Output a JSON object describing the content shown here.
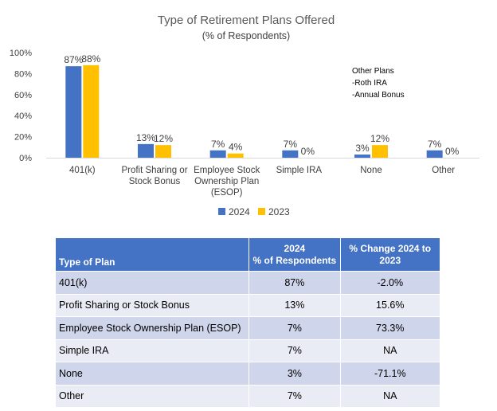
{
  "chart_data": {
    "type": "bar",
    "title": "Type of Retirement Plans Offered",
    "subtitle": "(% of Respondents)",
    "categories": [
      [
        "401(k)"
      ],
      [
        "Profit Sharing or",
        "Stock Bonus"
      ],
      [
        "Employee Stock",
        "Ownership Plan",
        "(ESOP)"
      ],
      [
        "Simple IRA"
      ],
      [
        "None"
      ],
      [
        "Other"
      ]
    ],
    "series": [
      {
        "name": "2024",
        "color": "#4472c4",
        "values": [
          87,
          13,
          7,
          7,
          3,
          7
        ],
        "labels": [
          "87%",
          "13%",
          "7%",
          "7%",
          "3%",
          "7%"
        ]
      },
      {
        "name": "2023",
        "color": "#ffc000",
        "values": [
          88,
          12,
          4,
          0,
          12,
          0
        ],
        "labels": [
          "88%",
          "12%",
          "4%",
          "0%",
          "12%",
          "0%"
        ]
      }
    ],
    "ylim": [
      0,
      100
    ],
    "yticks": [
      0,
      20,
      40,
      60,
      80,
      100
    ],
    "ytick_labels": [
      "0%",
      "20%",
      "40%",
      "60%",
      "80%",
      "100%"
    ],
    "xlabel": "",
    "ylabel": "",
    "grid": false,
    "legend_position": "bottom",
    "annotation": [
      "Other Plans",
      "-Roth IRA",
      "-Annual Bonus"
    ]
  },
  "table": {
    "header": {
      "plan": "Type of Plan",
      "col2": [
        "2024",
        "% of Respondents"
      ],
      "col3": [
        "% Change 2024 to",
        "2023"
      ]
    },
    "rows": [
      {
        "plan": "401(k)",
        "pct": "87%",
        "change": "-2.0%"
      },
      {
        "plan": "Profit Sharing or Stock Bonus",
        "pct": "13%",
        "change": "15.6%"
      },
      {
        "plan": "Employee Stock Ownership Plan (ESOP)",
        "pct": "7%",
        "change": "73.3%"
      },
      {
        "plan": "Simple IRA",
        "pct": "7%",
        "change": "NA"
      },
      {
        "plan": "None",
        "pct": "3%",
        "change": "-71.1%"
      },
      {
        "plan": "Other",
        "pct": "7%",
        "change": "NA"
      }
    ]
  }
}
